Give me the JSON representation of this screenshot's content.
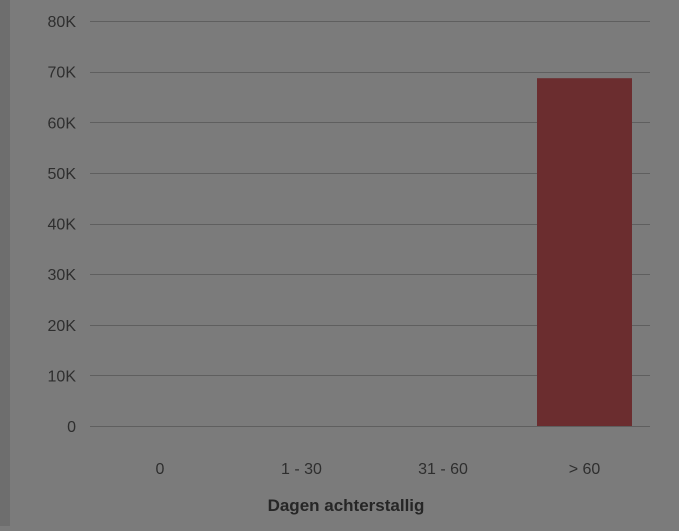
{
  "chart_data": {
    "type": "bar",
    "categories": [
      "0",
      "1 - 30",
      "31 - 60",
      "> 60"
    ],
    "values": [
      0,
      0,
      0,
      68700
    ],
    "title": "",
    "xlabel": "Dagen achterstallig",
    "ylabel": "",
    "ylim": [
      0,
      80000
    ],
    "yticks": [
      0,
      10000,
      20000,
      30000,
      40000,
      50000,
      60000,
      70000,
      80000
    ],
    "ytick_labels": [
      "0",
      "10K",
      "20K",
      "30K",
      "40K",
      "50K",
      "60K",
      "70K",
      "80K"
    ],
    "grid": true,
    "legend": "none",
    "colors": {
      "bar": "#6b2d2f",
      "background": "#7b7b7b",
      "grid": "#5f5f5f",
      "text": "#262626",
      "tick_text": "#2e2e2e"
    }
  }
}
